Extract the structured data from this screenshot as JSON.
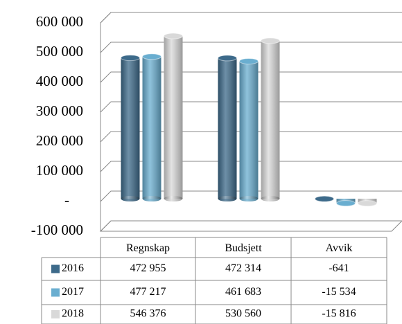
{
  "chart_data": {
    "type": "bar",
    "categories": [
      "Regnskap",
      "Budsjett",
      "Avvik"
    ],
    "series": [
      {
        "name": "2016",
        "color": "#3d6a8a",
        "values": [
          472955,
          472314,
          -641
        ],
        "value_labels": [
          "472 955",
          "472 314",
          "-641"
        ]
      },
      {
        "name": "2017",
        "color": "#6aaed0",
        "values": [
          477217,
          461683,
          -15534
        ],
        "value_labels": [
          "477 217",
          "461 683",
          "-15 534"
        ]
      },
      {
        "name": "2018",
        "color": "#d9d9d9",
        "values": [
          546376,
          530560,
          -15816
        ],
        "value_labels": [
          "546 376",
          "530 560",
          "-15 816"
        ]
      }
    ],
    "ylim": [
      -100000,
      600000
    ],
    "yticks": [
      {
        "value": -100000,
        "label": "-100 000"
      },
      {
        "value": 0,
        "label": "-"
      },
      {
        "value": 100000,
        "label": "100 000"
      },
      {
        "value": 200000,
        "label": "200 000"
      },
      {
        "value": 300000,
        "label": "300 000"
      },
      {
        "value": 400000,
        "label": "400 000"
      },
      {
        "value": 500000,
        "label": "500 000"
      },
      {
        "value": 600000,
        "label": "600 000"
      }
    ],
    "grid": true
  }
}
